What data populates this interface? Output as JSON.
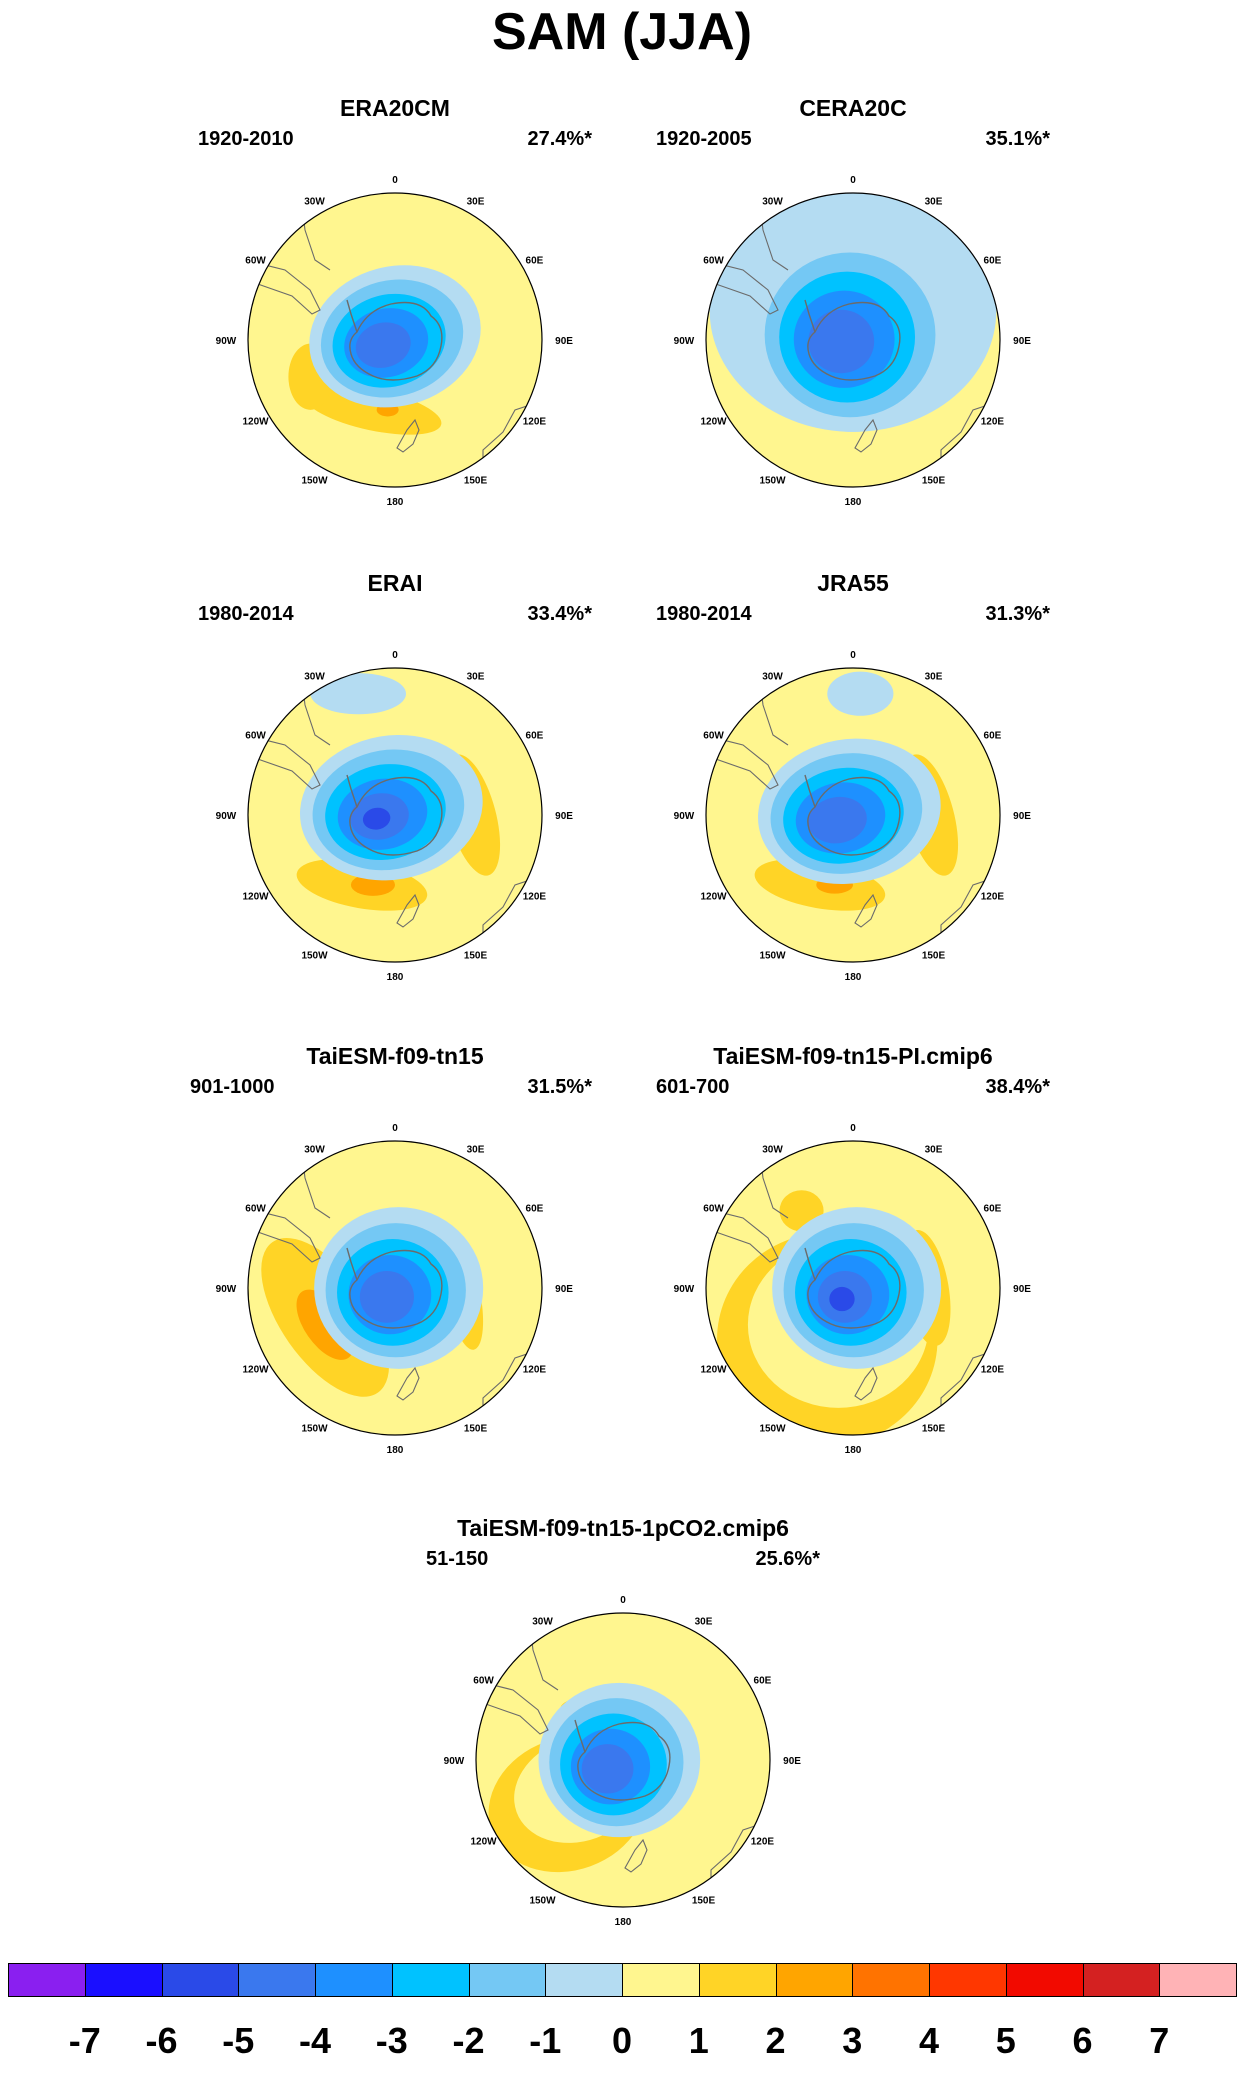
{
  "title": "SAM (JJA)",
  "lon_labels": [
    "0",
    "30E",
    "60E",
    "90E",
    "120E",
    "150E",
    "180",
    "150W",
    "120W",
    "90W",
    "60W",
    "30W"
  ],
  "panels": [
    {
      "title": "ERA20CM",
      "period": "1920-2010",
      "pct": "27.4%*"
    },
    {
      "title": "CERA20C",
      "period": "1920-2005",
      "pct": "35.1%*"
    },
    {
      "title": "ERAI",
      "period": "1980-2014",
      "pct": "33.4%*"
    },
    {
      "title": "JRA55",
      "period": "1980-2014",
      "pct": "31.3%*"
    },
    {
      "title": "TaiESM-f09-tn15",
      "period": "901-1000",
      "pct": "31.5%*"
    },
    {
      "title": "TaiESM-f09-tn15-PI.cmip6",
      "period": "601-700",
      "pct": "38.4%*"
    },
    {
      "title": "TaiESM-f09-tn15-1pCO2.cmip6",
      "period": "51-150",
      "pct": "25.6%*"
    }
  ],
  "colorbar": {
    "labels": [
      "-7",
      "-6",
      "-5",
      "-4",
      "-3",
      "-2",
      "-1",
      "0",
      "1",
      "2",
      "3",
      "4",
      "5",
      "6",
      "7"
    ],
    "colors": [
      "#8a1ff0",
      "#1a0fff",
      "#2a4ae8",
      "#3a78ee",
      "#1e90ff",
      "#00c2ff",
      "#74c8f4",
      "#b4dcf2",
      "#fff68f",
      "#ffd426",
      "#ffa500",
      "#ff7300",
      "#ff3700",
      "#f20a00",
      "#d42121",
      "#ffb3b6"
    ]
  }
}
